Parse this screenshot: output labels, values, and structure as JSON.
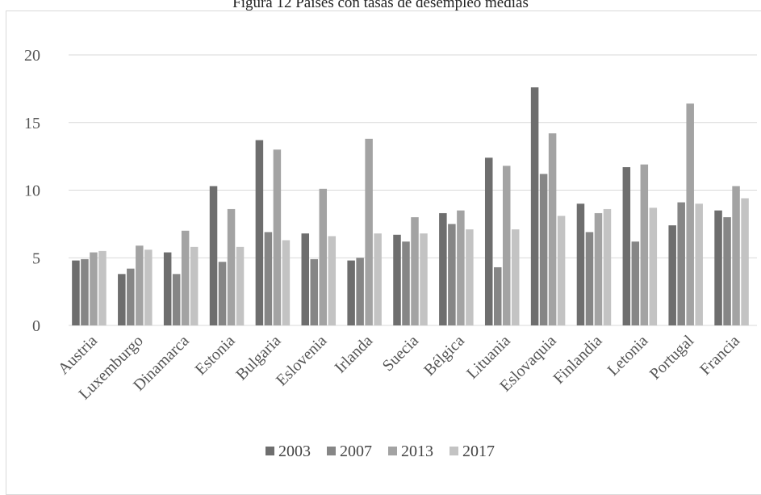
{
  "chart_data": {
    "type": "bar",
    "title": "Figura 12 Países con tasas de desempleo medias",
    "categories": [
      "Austria",
      "Luxemburgo",
      "Dinamarca",
      "Estonia",
      "Bulgaria",
      "Eslovenia",
      "Irlanda",
      "Suecia",
      "Bélgica",
      "Lituania",
      "Eslovaquia",
      "Finlandia",
      "Letonia",
      "Portugal",
      "Francia"
    ],
    "series": [
      {
        "name": "2003",
        "color": "#6e6e6e",
        "values": [
          4.8,
          3.8,
          5.4,
          10.3,
          13.7,
          6.8,
          4.8,
          6.7,
          8.3,
          12.4,
          17.6,
          9.0,
          11.7,
          7.4,
          8.5
        ]
      },
      {
        "name": "2007",
        "color": "#868686",
        "values": [
          4.9,
          4.2,
          3.8,
          4.7,
          6.9,
          4.9,
          5.0,
          6.2,
          7.5,
          4.3,
          11.2,
          6.9,
          6.2,
          9.1,
          8.0
        ]
      },
      {
        "name": "2013",
        "color": "#a3a3a3",
        "values": [
          5.4,
          5.9,
          7.0,
          8.6,
          13.0,
          10.1,
          13.8,
          8.0,
          8.5,
          11.8,
          14.2,
          8.3,
          11.9,
          16.4,
          10.3
        ]
      },
      {
        "name": "2017",
        "color": "#c3c3c3",
        "values": [
          5.5,
          5.6,
          5.8,
          5.8,
          6.3,
          6.6,
          6.8,
          6.8,
          7.1,
          7.1,
          8.1,
          8.6,
          8.7,
          9.0,
          9.4
        ]
      }
    ],
    "yticks": [
      0,
      5,
      10,
      15,
      20
    ],
    "ylim": [
      0,
      20
    ],
    "grid": true,
    "legend_position": "bottom"
  }
}
